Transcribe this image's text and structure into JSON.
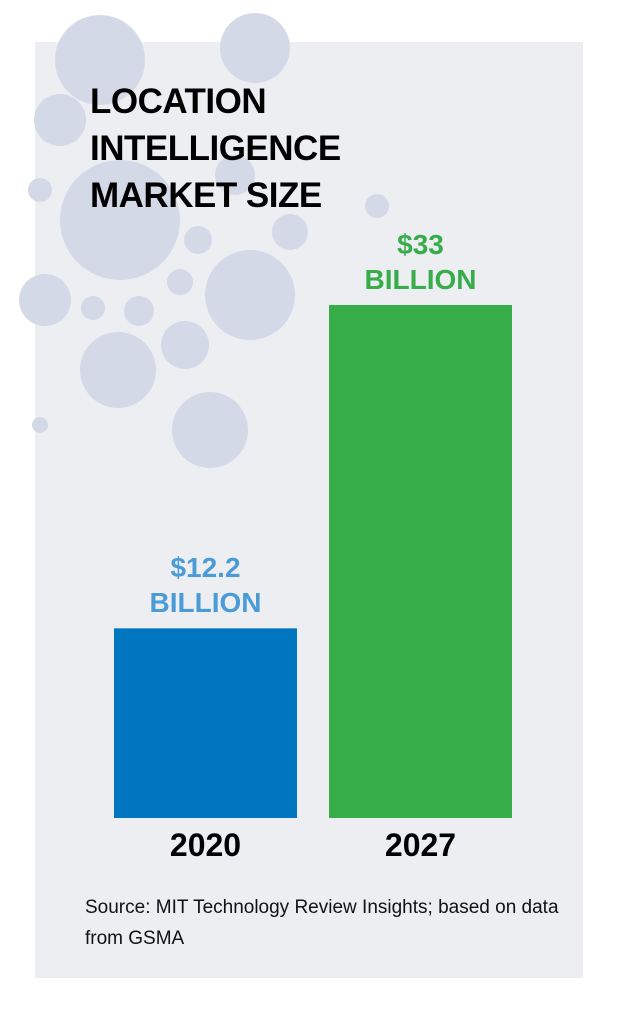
{
  "chart_data": {
    "type": "bar",
    "title": "LOCATION INTELLIGENCE MARKET SIZE",
    "categories": [
      "2020",
      "2027"
    ],
    "values": [
      12.2,
      33
    ],
    "value_labels": [
      "$12.2 BILLION",
      "$33 BILLION"
    ],
    "colors": [
      "#0076c0",
      "#37ad4a"
    ],
    "label_colors": [
      "#4a9bd6",
      "#37ad4a"
    ],
    "source": "Source: MIT Technology Review Insights; based on data from GSMA"
  }
}
